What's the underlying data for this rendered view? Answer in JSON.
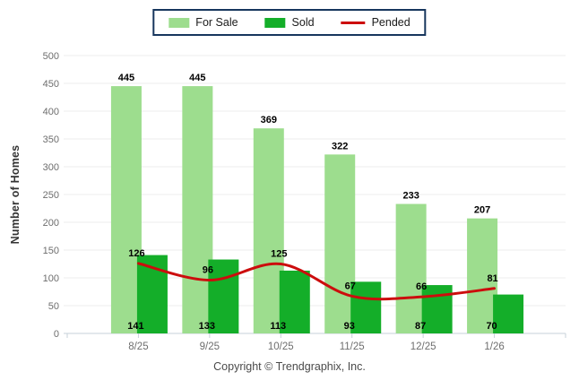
{
  "legend": {
    "border_color": "#17365d",
    "items": [
      {
        "id": "for-sale",
        "label": "For Sale",
        "type": "swatch",
        "color": "#9ddd8e"
      },
      {
        "id": "sold",
        "label": "Sold",
        "type": "swatch",
        "color": "#14ae29"
      },
      {
        "id": "pended",
        "label": "Pended",
        "type": "line",
        "color": "#cc0d0d"
      }
    ]
  },
  "chart_data": {
    "type": "bar",
    "title": "",
    "xlabel": "",
    "ylabel": "Number of Homes",
    "categories": [
      "8/25",
      "9/25",
      "10/25",
      "11/25",
      "12/25",
      "1/26"
    ],
    "series": [
      {
        "name": "For Sale",
        "type": "bar",
        "color": "#9ddd8e",
        "values": [
          445,
          445,
          369,
          322,
          233,
          207
        ]
      },
      {
        "name": "Sold",
        "type": "bar",
        "color": "#14ae29",
        "values": [
          141,
          133,
          113,
          93,
          87,
          70
        ]
      },
      {
        "name": "Pended",
        "type": "line",
        "color": "#cc0d0d",
        "values": [
          126,
          96,
          125,
          67,
          66,
          81
        ]
      }
    ],
    "ylim": [
      0,
      500
    ],
    "yticks": [
      0,
      50,
      100,
      150,
      200,
      250,
      300,
      350,
      400,
      450,
      500
    ],
    "grid": true,
    "legend_position": "top-center",
    "value_labels": true
  },
  "style": {
    "grid_color": "#ededed",
    "axis_color": "#c7d0d9",
    "tick_label_color": "#6e6e6e",
    "value_label_color": "#000000"
  },
  "footer": {
    "copyright": "Copyright © Trendgraphix, Inc."
  }
}
